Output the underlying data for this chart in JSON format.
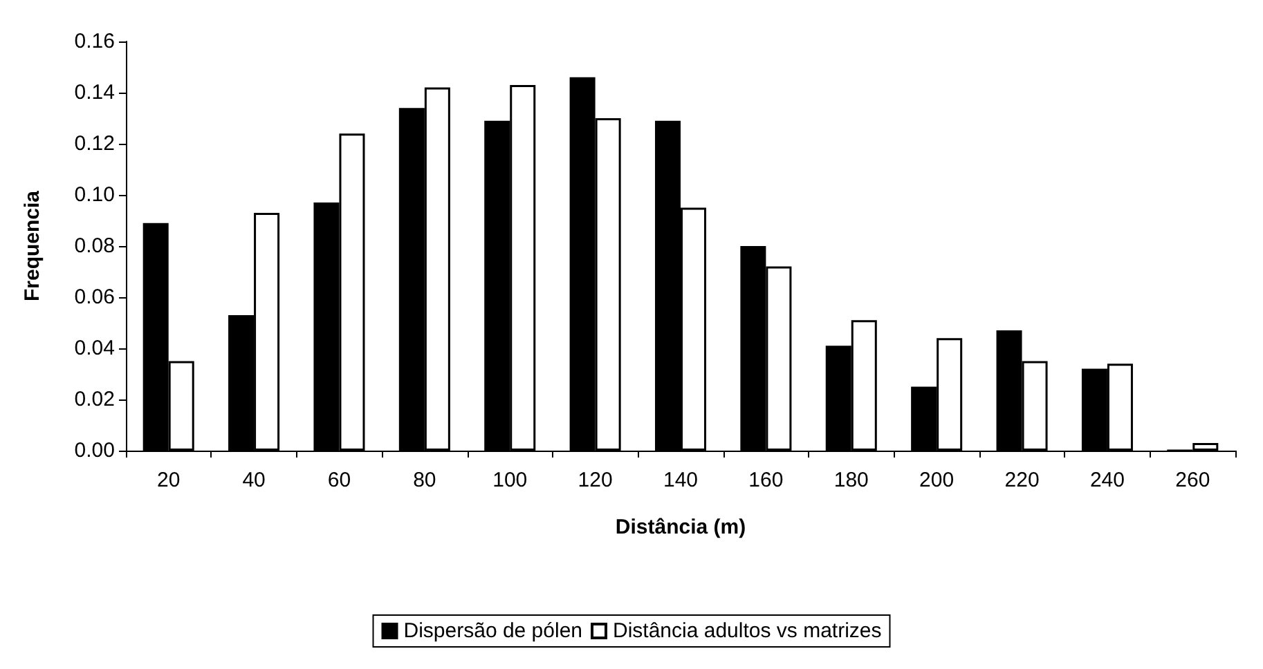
{
  "chart_data": {
    "type": "bar",
    "xlabel": "Distância (m)",
    "ylabel": "Frequencia",
    "categories": [
      "20",
      "40",
      "60",
      "80",
      "100",
      "120",
      "140",
      "160",
      "180",
      "200",
      "220",
      "240",
      "260"
    ],
    "series": [
      {
        "name": "Dispersão de pólen",
        "color": "#000000",
        "values": [
          0.089,
          0.053,
          0.097,
          0.134,
          0.129,
          0.146,
          0.129,
          0.08,
          0.041,
          0.025,
          0.047,
          0.032,
          0
        ]
      },
      {
        "name": "Distância adultos vs matrizes",
        "color": "#ffffff",
        "values": [
          0.035,
          0.093,
          0.124,
          0.142,
          0.143,
          0.13,
          0.095,
          0.072,
          0.051,
          0.044,
          0.035,
          0.034,
          0.003
        ]
      }
    ],
    "ylim": [
      0,
      0.16
    ],
    "yticks": [
      {
        "value": 0,
        "label": "0.00"
      },
      0.02,
      0.04,
      0.06,
      0.08,
      {
        "value": 0.1,
        "label": "0.10"
      },
      0.12,
      0.14,
      0.16
    ],
    "grid": false,
    "legend": "bottom"
  }
}
